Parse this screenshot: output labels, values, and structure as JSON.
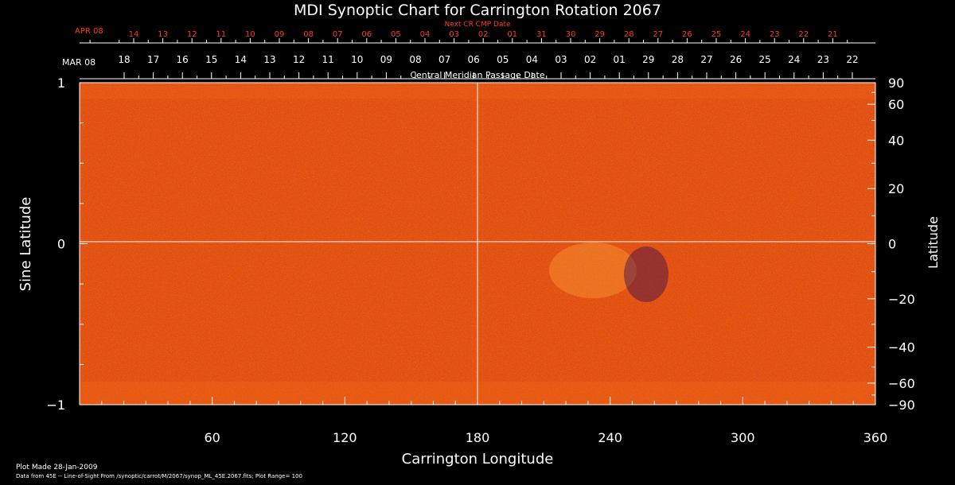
{
  "chart_data": {
    "type": "heatmap",
    "title": "MDI Synoptic Chart for Carrington Rotation 2067",
    "xlabel": "Carrington Longitude",
    "ylabel_left": "Sine Latitude",
    "ylabel_right": "Latitude",
    "xlim": [
      0,
      360
    ],
    "ylim": [
      -1,
      1
    ],
    "x_ticks": [
      "60",
      "120",
      "180",
      "240",
      "300",
      "360"
    ],
    "y_ticks_left": [
      "1",
      "0",
      "−1"
    ],
    "y_ticks_right": [
      "90",
      "60",
      "40",
      "20",
      "0",
      "−20",
      "−40",
      "−60",
      "−90"
    ],
    "next_cr_label": "Next CR CMP Date",
    "next_cr_month": "APR 08",
    "next_cr_dates": [
      "14",
      "13",
      "12",
      "11",
      "10",
      "09",
      "08",
      "07",
      "06",
      "05",
      "04",
      "03",
      "02",
      "01",
      "31",
      "30",
      "29",
      "28",
      "27",
      "26",
      "25",
      "24",
      "23",
      "22",
      "21"
    ],
    "cmp_label": "Central Meridian Passage Date",
    "cmp_month": "MAR 08",
    "cmp_dates": [
      "18",
      "17",
      "16",
      "15",
      "14",
      "13",
      "12",
      "11",
      "10",
      "09",
      "08",
      "07",
      "06",
      "05",
      "04",
      "03",
      "02",
      "01",
      "29",
      "28",
      "27",
      "26",
      "25",
      "24",
      "23",
      "22"
    ],
    "colors": {
      "background": "#e65010",
      "axis": "#ffffff",
      "accent_red": "#ff3b1a"
    }
  },
  "footer": {
    "plot_made": "Plot Made 28-Jan-2009",
    "source": "Data from 45E -- Line-of-Sight From /synoptic/carrot/M/2067/synop_ML_45E.2067.fits; Plot Range= 100"
  }
}
